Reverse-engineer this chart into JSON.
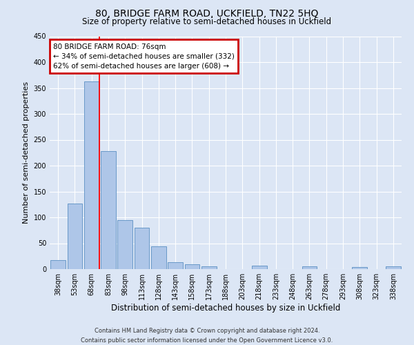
{
  "title": "80, BRIDGE FARM ROAD, UCKFIELD, TN22 5HQ",
  "subtitle": "Size of property relative to semi-detached houses in Uckfield",
  "xlabel": "Distribution of semi-detached houses by size in Uckfield",
  "ylabel": "Number of semi-detached properties",
  "categories": [
    "38sqm",
    "53sqm",
    "68sqm",
    "83sqm",
    "98sqm",
    "113sqm",
    "128sqm",
    "143sqm",
    "158sqm",
    "173sqm",
    "188sqm",
    "203sqm",
    "218sqm",
    "233sqm",
    "248sqm",
    "263sqm",
    "278sqm",
    "293sqm",
    "308sqm",
    "323sqm",
    "338sqm"
  ],
  "values": [
    18,
    127,
    363,
    228,
    95,
    80,
    44,
    13,
    10,
    6,
    0,
    0,
    7,
    0,
    0,
    6,
    0,
    0,
    4,
    0,
    5
  ],
  "bar_color": "#aec6e8",
  "bar_edge_color": "#5a8fc2",
  "red_line_x": 2,
  "annotation_title": "80 BRIDGE FARM ROAD: 76sqm",
  "annotation_line1": "← 34% of semi-detached houses are smaller (332)",
  "annotation_line2": "62% of semi-detached houses are larger (608) →",
  "annotation_box_facecolor": "#ffffff",
  "annotation_box_edgecolor": "#cc0000",
  "footer_line1": "Contains HM Land Registry data © Crown copyright and database right 2024.",
  "footer_line2": "Contains public sector information licensed under the Open Government Licence v3.0.",
  "ylim": [
    0,
    450
  ],
  "background_color": "#dce6f5",
  "grid_color": "#ffffff",
  "title_fontsize": 10,
  "subtitle_fontsize": 8.5,
  "ylabel_fontsize": 8,
  "xlabel_fontsize": 8.5,
  "tick_fontsize": 7,
  "footer_fontsize": 6,
  "annot_fontsize": 7.5
}
